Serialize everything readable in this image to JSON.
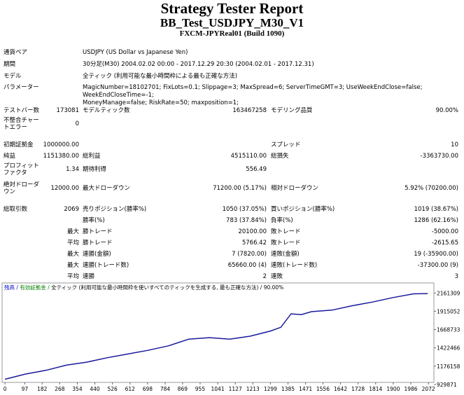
{
  "header": {
    "title": "Strategy Tester Report",
    "subtitle": "BB_Test_USDJPY_M30_V1",
    "server": "FXCM-JPYReal01 (Build 1090)"
  },
  "info": [
    {
      "label": "通貨ペア",
      "value": [
        "USDJPY (US Dollar vs Japanese Yen)"
      ]
    },
    {
      "label": "期間",
      "value": [
        "30分足(M30) 2004.02.02 00:00 - 2017.12.29 20:30 (2004.02.01 - 2017.12.31)"
      ]
    },
    {
      "label": "モデル",
      "value": [
        "全ティック (利用可能な最小時間枠による最も正確な方法)"
      ]
    },
    {
      "label": "パラメーター",
      "value": [
        "MagicNumber=18102701; FixLots=0.1; Slippage=3; MaxSpread=6; ServerTimeGMT=3; UseWeekEndClose=false; WeekEndCloseTime=-1;",
        "MoneyManage=false; RiskRate=50; maxposition=1;"
      ]
    }
  ],
  "stats": [
    {
      "c1": "テストバー数",
      "v1": "173081",
      "c2": "モデルティック数",
      "v2": "163467258",
      "c3": "モデリング品質",
      "v3": "90.00%"
    },
    {
      "c1": "不整合チャートエラー",
      "v1": "0"
    },
    {
      "c1": "初期証拠金",
      "v1": "1000000.00",
      "c3": "スプレッド",
      "v3": "10"
    },
    {
      "c1": "純益",
      "v1": "1151380.00",
      "c2": "総利益",
      "v2": "4515110.00",
      "c3": "総損失",
      "v3": "-3363730.00"
    },
    {
      "c1": "プロフィットファクタ",
      "v1": "1.34",
      "c2": "期待利得",
      "v2": "556.49"
    },
    {
      "c1": "絶対ドローダウン",
      "v1": "12000.00",
      "c2": "最大ドローダウン",
      "v2": "71200.00 (5.17%)",
      "c3": "相対ドローダウン",
      "v3": "5.92% (70200.00)"
    },
    {
      "c1": "総取引数",
      "v1": "2069",
      "c2": "売りポジション(勝率%)",
      "v2": "1050 (37.05%)",
      "c3": "買いポジション(勝率%)",
      "v3": "1019 (38.67%)"
    },
    {
      "c2": "勝率(%)",
      "v2": "783 (37.84%)",
      "c3": "負率(%)",
      "v3": "1286 (62.16%)"
    },
    {
      "v1": "最大",
      "c2": "勝トレード",
      "v2": "20100.00",
      "c3": "敗トレード",
      "v3": "-5000.00"
    },
    {
      "v1": "平均",
      "c2": "勝トレード",
      "v2": "5766.42",
      "c3": "敗トレード",
      "v3": "-2615.65"
    },
    {
      "v1": "最大",
      "c2": "連勝(金額)",
      "v2": "7 (7820.00)",
      "c3": "連敗(金額)",
      "v3": "19 (-35900.00)"
    },
    {
      "v1": "最大",
      "c2": "連勝(トレード数)",
      "v2": "65660.00 (4)",
      "c3": "連敗(トレード数)",
      "v3": "-37300.00 (9)"
    },
    {
      "v1": "平均",
      "c2": "連勝",
      "v2": "2",
      "c3": "連敗",
      "v3": "3"
    }
  ],
  "chart_data": {
    "type": "line",
    "legend_items": [
      {
        "text": "残高 /",
        "color": "#0000cc"
      },
      {
        "text": "有効証拠金 /",
        "color": "#008000"
      },
      {
        "text": "全ティック (利用可能な最小時間枠を使いすべてのティックを生成する, 最も正確な方法) / 90.00%",
        "color": "#000000"
      }
    ],
    "color": "#1a1a9c",
    "x": [
      0,
      100,
      200,
      300,
      400,
      500,
      600,
      700,
      800,
      900,
      1000,
      1100,
      1200,
      1300,
      1350,
      1400,
      1450,
      1500,
      1600,
      1700,
      1800,
      1900,
      2000,
      2069
    ],
    "values": [
      1000000,
      1070000,
      1120000,
      1190000,
      1230000,
      1290000,
      1340000,
      1390000,
      1450000,
      1540000,
      1560000,
      1540000,
      1580000,
      1650000,
      1700000,
      1880000,
      1870000,
      1910000,
      1930000,
      1990000,
      2040000,
      2100000,
      2150000,
      2151380
    ],
    "xlim": [
      -14,
      2099
    ],
    "xticks": [
      0,
      97,
      182,
      268,
      354,
      440,
      526,
      612,
      698,
      784,
      869,
      955,
      1041,
      1127,
      1213,
      1299,
      1385,
      1471,
      1556,
      1642,
      1728,
      1814,
      1900,
      1986,
      2072
    ],
    "ylim": [
      958000,
      2296000
    ],
    "yticks": [
      929871,
      1176158,
      1422466,
      1668733,
      1915052,
      2161309
    ]
  }
}
